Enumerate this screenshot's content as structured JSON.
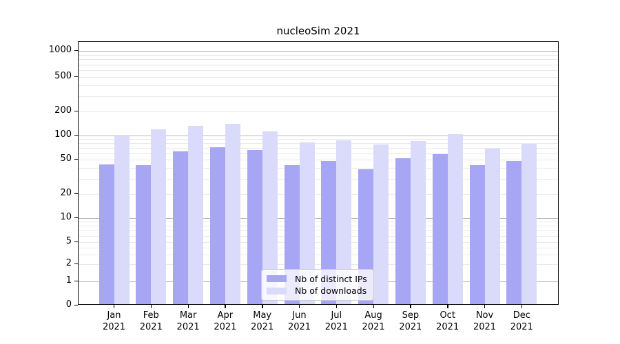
{
  "chart_data": {
    "type": "bar",
    "title": "nucleoSim 2021",
    "categories": [
      "Jan",
      "Feb",
      "Mar",
      "Apr",
      "May",
      "Jun",
      "Jul",
      "Aug",
      "Sep",
      "Oct",
      "Nov",
      "Dec"
    ],
    "category_year": "2021",
    "series": [
      {
        "name": "Nb of distinct IPs",
        "color": "#a6a6f4",
        "values": [
          44,
          43,
          64,
          72,
          66,
          43,
          48,
          39,
          52,
          59,
          43,
          48
        ]
      },
      {
        "name": "Nb of downloads",
        "color": "#dadafb",
        "values": [
          102,
          119,
          132,
          140,
          113,
          82,
          87,
          77,
          85,
          104,
          69,
          79
        ]
      }
    ],
    "y_ticks": [
      0,
      1,
      2,
      5,
      10,
      20,
      50,
      100,
      200,
      500,
      1000
    ],
    "y_scale": "symlog",
    "ylim": [
      0,
      1400
    ],
    "grid": {
      "major_at": [
        1,
        10,
        100,
        1000
      ],
      "minor": "log sub-decades"
    },
    "legend_position": "lower center",
    "colors": {
      "major_grid": "#b6b6b6",
      "minor_grid": "#e9e9e9",
      "axis": "#000000",
      "legend_border": "#cccccc",
      "legend_bg": "rgba(255,255,255,0.78)"
    }
  }
}
